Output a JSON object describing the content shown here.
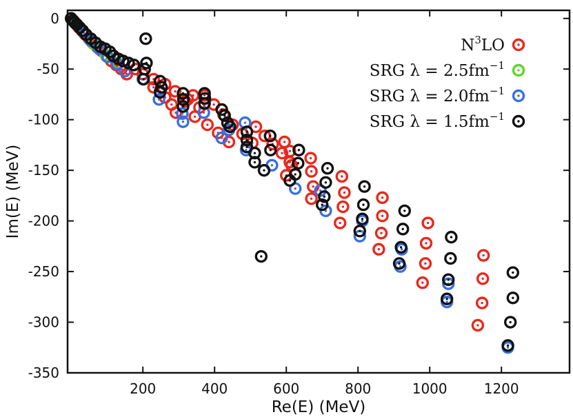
{
  "chart_data": {
    "type": "scatter",
    "title": "",
    "xlabel": "Re(E) (MeV)",
    "ylabel": "Im(E) (MeV)",
    "xlim": [
      -10,
      1390
    ],
    "ylim": [
      -350,
      8
    ],
    "xticks": [
      200,
      400,
      600,
      800,
      1000,
      1200
    ],
    "yticks": [
      0,
      -50,
      -100,
      -150,
      -200,
      -250,
      -300,
      -350
    ],
    "grid": false,
    "legend_position": "top-right",
    "marker": "ring-with-center-dot",
    "series": [
      {
        "name": "N³LO",
        "label_main": "N",
        "label_sup": "3",
        "label_tail": "LO",
        "color": "#e8281e",
        "points": [
          [
            0,
            0
          ],
          [
            8,
            -3
          ],
          [
            15,
            -6
          ],
          [
            22,
            -9
          ],
          [
            30,
            -12
          ],
          [
            40,
            -16
          ],
          [
            50,
            -20
          ],
          [
            60,
            -24
          ],
          [
            72,
            -28
          ],
          [
            85,
            -32
          ],
          [
            98,
            -37
          ],
          [
            112,
            -42
          ],
          [
            126,
            -46
          ],
          [
            140,
            -50
          ],
          [
            155,
            -55
          ],
          [
            180,
            -50
          ],
          [
            200,
            -55
          ],
          [
            230,
            -60
          ],
          [
            262,
            -65
          ],
          [
            230,
            -68
          ],
          [
            262,
            -78
          ],
          [
            290,
            -72
          ],
          [
            325,
            -80
          ],
          [
            358,
            -88
          ],
          [
            280,
            -85
          ],
          [
            292,
            -93
          ],
          [
            318,
            -82
          ],
          [
            340,
            -76
          ],
          [
            372,
            -76
          ],
          [
            398,
            -85
          ],
          [
            425,
            -95
          ],
          [
            450,
            -105
          ],
          [
            478,
            -114
          ],
          [
            505,
            -123
          ],
          [
            345,
            -97
          ],
          [
            380,
            -105
          ],
          [
            410,
            -113
          ],
          [
            440,
            -122
          ],
          [
            515,
            -107
          ],
          [
            540,
            -116
          ],
          [
            562,
            -124
          ],
          [
            588,
            -133
          ],
          [
            610,
            -142
          ],
          [
            595,
            -122
          ],
          [
            610,
            -131
          ],
          [
            615,
            -145
          ],
          [
            600,
            -155
          ],
          [
            668,
            -138
          ],
          [
            670,
            -151
          ],
          [
            675,
            -166
          ],
          [
            670,
            -178
          ],
          [
            755,
            -156
          ],
          [
            762,
            -172
          ],
          [
            758,
            -186
          ],
          [
            750,
            -202
          ],
          [
            868,
            -177
          ],
          [
            868,
            -195
          ],
          [
            865,
            -212
          ],
          [
            858,
            -228
          ],
          [
            995,
            -202
          ],
          [
            990,
            -222
          ],
          [
            988,
            -242
          ],
          [
            980,
            -261
          ],
          [
            1150,
            -234
          ],
          [
            1148,
            -257
          ],
          [
            1146,
            -281
          ],
          [
            1134,
            -303
          ]
        ]
      },
      {
        "name": "SRG λ = 2.5fm⁻¹",
        "label_main": "SRG λ = 2.5fm",
        "label_sup": "−1",
        "label_tail": "",
        "color": "#5fd42a",
        "points": [
          [
            12,
            -5
          ],
          [
            35,
            -14
          ],
          [
            62,
            -25
          ],
          [
            96,
            -36
          ],
          [
            130,
            -44
          ]
        ]
      },
      {
        "name": "SRG λ = 2.0fm⁻¹",
        "label_main": "SRG λ = 2.0fm",
        "label_sup": "−1",
        "label_tail": "",
        "color": "#3a6fe0",
        "points": [
          [
            5,
            -2
          ],
          [
            18,
            -7
          ],
          [
            35,
            -14
          ],
          [
            55,
            -22
          ],
          [
            78,
            -30
          ],
          [
            102,
            -38
          ],
          [
            128,
            -45
          ],
          [
            150,
            -52
          ],
          [
            200,
            -60
          ],
          [
            245,
            -80
          ],
          [
            248,
            -72
          ],
          [
            312,
            -102
          ],
          [
            310,
            -94
          ],
          [
            370,
            -93
          ],
          [
            420,
            -118
          ],
          [
            440,
            -110
          ],
          [
            485,
            -103
          ],
          [
            488,
            -130
          ],
          [
            560,
            -145
          ],
          [
            625,
            -168
          ],
          [
            695,
            -170
          ],
          [
            710,
            -190
          ],
          [
            805,
            -215
          ],
          [
            812,
            -200
          ],
          [
            918,
            -245
          ],
          [
            922,
            -228
          ],
          [
            1048,
            -280
          ],
          [
            1052,
            -262
          ],
          [
            1218,
            -325
          ]
        ]
      },
      {
        "name": "SRG λ = 1.5fm⁻¹",
        "label_main": "SRG λ = 1.5fm",
        "label_sup": "−1",
        "label_tail": "",
        "color": "#111111",
        "points": [
          [
            0,
            0
          ],
          [
            5,
            -2
          ],
          [
            10,
            -4
          ],
          [
            16,
            -6
          ],
          [
            24,
            -9
          ],
          [
            32,
            -12
          ],
          [
            42,
            -16
          ],
          [
            55,
            -20
          ],
          [
            68,
            -24
          ],
          [
            82,
            -28
          ],
          [
            95,
            -30
          ],
          [
            108,
            -33
          ],
          [
            118,
            -37
          ],
          [
            132,
            -40
          ],
          [
            145,
            -42
          ],
          [
            160,
            -44
          ],
          [
            175,
            -46
          ],
          [
            208,
            -20
          ],
          [
            210,
            -44
          ],
          [
            205,
            -50
          ],
          [
            202,
            -60
          ],
          [
            248,
            -62
          ],
          [
            252,
            -68
          ],
          [
            248,
            -73
          ],
          [
            312,
            -74
          ],
          [
            313,
            -80
          ],
          [
            312,
            -87
          ],
          [
            372,
            -74
          ],
          [
            373,
            -79
          ],
          [
            372,
            -84
          ],
          [
            420,
            -90
          ],
          [
            428,
            -96
          ],
          [
            436,
            -103
          ],
          [
            443,
            -107
          ],
          [
            490,
            -112
          ],
          [
            490,
            -120
          ],
          [
            490,
            -127
          ],
          [
            512,
            -133
          ],
          [
            512,
            -142
          ],
          [
            555,
            -116
          ],
          [
            556,
            -130
          ],
          [
            538,
            -150
          ],
          [
            635,
            -130
          ],
          [
            633,
            -143
          ],
          [
            625,
            -154
          ],
          [
            610,
            -160
          ],
          [
            715,
            -148
          ],
          [
            710,
            -162
          ],
          [
            706,
            -176
          ],
          [
            700,
            -184
          ],
          [
            818,
            -166
          ],
          [
            815,
            -184
          ],
          [
            812,
            -198
          ],
          [
            805,
            -210
          ],
          [
            930,
            -190
          ],
          [
            925,
            -208
          ],
          [
            920,
            -226
          ],
          [
            915,
            -242
          ],
          [
            1060,
            -216
          ],
          [
            1058,
            -237
          ],
          [
            1052,
            -258
          ],
          [
            1048,
            -277
          ],
          [
            1232,
            -251
          ],
          [
            1232,
            -276
          ],
          [
            1225,
            -300
          ],
          [
            1218,
            -323
          ],
          [
            530,
            -235
          ]
        ]
      }
    ]
  }
}
